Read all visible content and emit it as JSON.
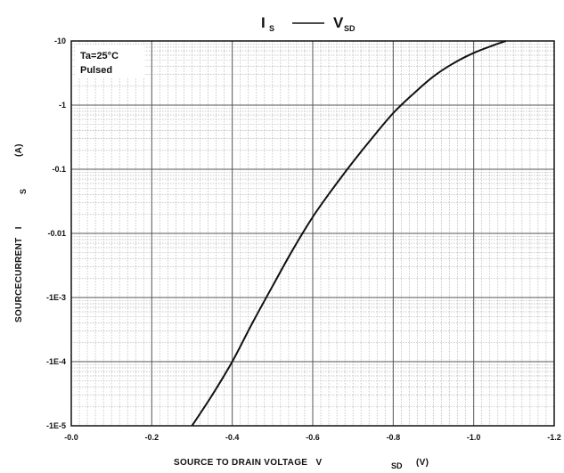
{
  "chart_data": {
    "type": "line",
    "title": {
      "left_symbol": "I",
      "left_subscript": "S",
      "separator": "——",
      "right_symbol": "V",
      "right_subscript": "SD"
    },
    "xlabel": {
      "text": "SOURCE TO DRAIN VOLTAGE   V",
      "subscript": "SD",
      "unit": "(V)"
    },
    "ylabel": {
      "text": "SOURCECURRENT   I",
      "subscript": "S",
      "unit": "(A)"
    },
    "annotation": [
      "Ta=25°C",
      "Pulsed"
    ],
    "x_ticks": [
      "-0.0",
      "-0.2",
      "-0.4",
      "-0.6",
      "-0.8",
      "-1.0",
      "-1.2"
    ],
    "y_ticks": [
      "-10",
      "-1",
      "-0.1",
      "-0.01",
      "-1E-3",
      "-1E-4",
      "-1E-5"
    ],
    "xlim": [
      0,
      -1.2
    ],
    "ylim": [
      -1e-05,
      -10
    ],
    "y_scale": "log",
    "grid": true,
    "series": [
      {
        "x": [
          -0.3,
          -0.35,
          -0.4,
          -0.45,
          -0.5,
          -0.55,
          -0.6,
          -0.65,
          -0.7,
          -0.75,
          -0.8,
          -0.85,
          -0.9,
          -0.95,
          -1.0,
          -1.05,
          -1.08
        ],
        "y": [
          -1e-05,
          -3e-05,
          -0.0001,
          -0.0004,
          -0.0015,
          -0.0055,
          -0.018,
          -0.05,
          -0.13,
          -0.32,
          -0.75,
          -1.5,
          -2.8,
          -4.5,
          -6.5,
          -8.6,
          -10
        ]
      }
    ]
  }
}
